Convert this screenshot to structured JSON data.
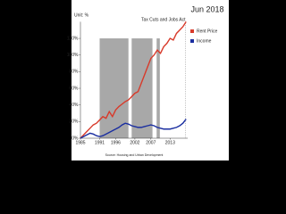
{
  "chart_data": {
    "type": "line",
    "title": "Jun 2018",
    "y_unit": "Unit: %",
    "x": [
      1985,
      1986,
      1987,
      1988,
      1989,
      1990,
      1991,
      1992,
      1993,
      1994,
      1995,
      1996,
      1997,
      1998,
      1999,
      2000,
      2001,
      2002,
      2003,
      2004,
      2005,
      2006,
      2007,
      2008,
      2009,
      2010,
      2011,
      2012,
      2013,
      2014,
      2015,
      2016,
      2017,
      2018
    ],
    "series": [
      {
        "name": "Rent Price",
        "color": "#d83a2a",
        "values": [
          0,
          4,
          8,
          12,
          16,
          18,
          22,
          26,
          24,
          32,
          26,
          34,
          38,
          41,
          44,
          46,
          50,
          54,
          56,
          66,
          76,
          86,
          96,
          100,
          106,
          102,
          110,
          114,
          120,
          118,
          126,
          130,
          134,
          140
        ]
      },
      {
        "name": "Income",
        "color": "#1a2ea0",
        "values": [
          0,
          2,
          4,
          6,
          5,
          3,
          2,
          3,
          5,
          7,
          9,
          11,
          13,
          16,
          18,
          17,
          15,
          14,
          13,
          13,
          14,
          15,
          16,
          15,
          13,
          12,
          11,
          11,
          11,
          12,
          13,
          15,
          18,
          23
        ]
      }
    ],
    "shaded": [
      [
        1991,
        2000
      ],
      [
        2001,
        2007.5
      ],
      [
        2008.8,
        2009.8
      ]
    ],
    "annotation": {
      "x": 2017.8,
      "text": "Tax Cuts and Jobs Act"
    },
    "source": "Source: Housing and Urban Development",
    "xlim": [
      1985,
      2018.5
    ],
    "ylim": [
      0,
      140
    ],
    "xticks": [
      1985,
      1991,
      1996,
      2002,
      2007,
      2013
    ],
    "yticks": [
      {
        "value": 0,
        "label": "0%"
      },
      {
        "value": 20,
        "label": "20%"
      },
      {
        "value": 40,
        "label": "40%"
      },
      {
        "value": 60,
        "label": "60%"
      },
      {
        "value": 80,
        "label": "80%"
      },
      {
        "value": 100,
        "label": "100%"
      },
      {
        "value": 120,
        "label": "120%"
      }
    ],
    "legend": "top-right"
  }
}
